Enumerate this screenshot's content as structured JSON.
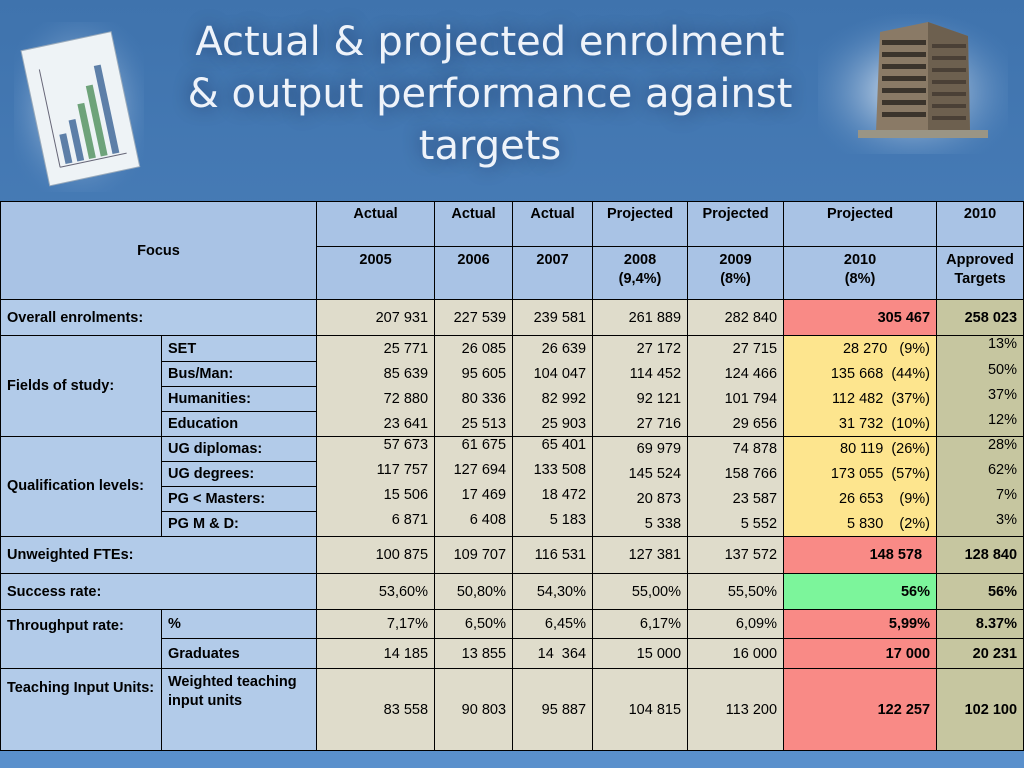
{
  "title_lines": [
    "Actual & projected enrolment",
    "& output performance against",
    "targets"
  ],
  "header": {
    "focus": "Focus",
    "cols": [
      {
        "top": "Actual",
        "bottom": "2005"
      },
      {
        "top": "Actual",
        "bottom": "2006"
      },
      {
        "top": "Actual",
        "bottom": "2007"
      },
      {
        "top": "Projected",
        "bottom": "2008",
        "bottom2": "(9,4%)"
      },
      {
        "top": "Projected",
        "bottom": "2009",
        "bottom2": "(8%)"
      },
      {
        "top": "Projected",
        "bottom": "2010",
        "bottom2": "(8%)"
      },
      {
        "top": "2010",
        "bottom": "Approved",
        "bottom2": "Targets"
      }
    ]
  },
  "rows": {
    "overall": {
      "label": "Overall enrolments:",
      "values": [
        "207 931",
        "227 539",
        "239 581",
        "261 889",
        "282 840",
        "305 467",
        "258 023"
      ]
    },
    "fields": {
      "label": "Fields of study:",
      "items": [
        {
          "label": "SET",
          "values": [
            "25 771",
            "26 085",
            "26 639",
            "27 172",
            "27 715",
            "28 270   (9%)",
            "13%"
          ]
        },
        {
          "label": "Bus/Man:",
          "values": [
            "85 639",
            "95 605",
            "104 047",
            "114 452",
            "124 466",
            "135 668  (44%)",
            "50%"
          ]
        },
        {
          "label": "Humanities:",
          "values": [
            "72 880",
            "80 336",
            "82 992",
            "92 121",
            "101 794",
            "112 482  (37%)",
            "37%"
          ]
        },
        {
          "label": "Education",
          "values": [
            "23 641",
            "25 513",
            "25 903",
            "27 716",
            "29 656",
            "31 732  (10%)",
            "12%"
          ]
        }
      ]
    },
    "qualification": {
      "label": "Qualification levels:",
      "items": [
        {
          "label": "UG diplomas:",
          "values": [
            "57 673",
            "61 675",
            "65 401",
            "69 979",
            "74 878",
            "80 119  (26%)",
            "28%"
          ]
        },
        {
          "label": "UG degrees:",
          "values": [
            "117 757",
            "127 694",
            "133 508",
            "145 524",
            "158 766",
            "173 055  (57%)",
            "62%"
          ]
        },
        {
          "label": "PG < Masters:",
          "values": [
            "15 506",
            "17 469",
            "18 472",
            "20 873",
            "23 587",
            "26 653    (9%)",
            "7%"
          ]
        },
        {
          "label": "PG M & D:",
          "values": [
            "6 871",
            "6 408",
            "5 183",
            "5 338",
            "5 552",
            "5 830    (2%)",
            "3%"
          ]
        }
      ]
    },
    "ftes": {
      "label": "Unweighted FTEs:",
      "values": [
        "100 875",
        "109 707",
        "116 531",
        "127 381",
        "137 572",
        "148 578",
        "128 840"
      ]
    },
    "success": {
      "label": "Success rate:",
      "values": [
        "53,60%",
        "50,80%",
        "54,30%",
        "55,00%",
        "55,50%",
        "56%",
        "56%"
      ]
    },
    "throughput": {
      "label": "Throughput rate:",
      "items": [
        {
          "label": "%",
          "values": [
            "7,17%",
            "6,50%",
            "6,45%",
            "6,17%",
            "6,09%",
            "5,99%",
            "8.37%"
          ]
        },
        {
          "label": "Graduates",
          "values": [
            "14 185",
            "13 855",
            "14  364",
            "15 000",
            "16 000",
            "17 000",
            "20 231"
          ]
        }
      ]
    },
    "tiu": {
      "label": "Teaching Input Units:",
      "sublabel": "Weighted teaching input units",
      "values": [
        "83 558",
        "90 803",
        "95 887",
        "104 815",
        "113 200",
        "122 257",
        "102 100"
      ]
    }
  },
  "colors": {
    "highlight_red": "#f98a86",
    "highlight_green": "#7cf59b",
    "highlight_yellow": "#fde58e",
    "header_blue": "#a9c3e5",
    "target_olive": "#c6c6a0"
  }
}
